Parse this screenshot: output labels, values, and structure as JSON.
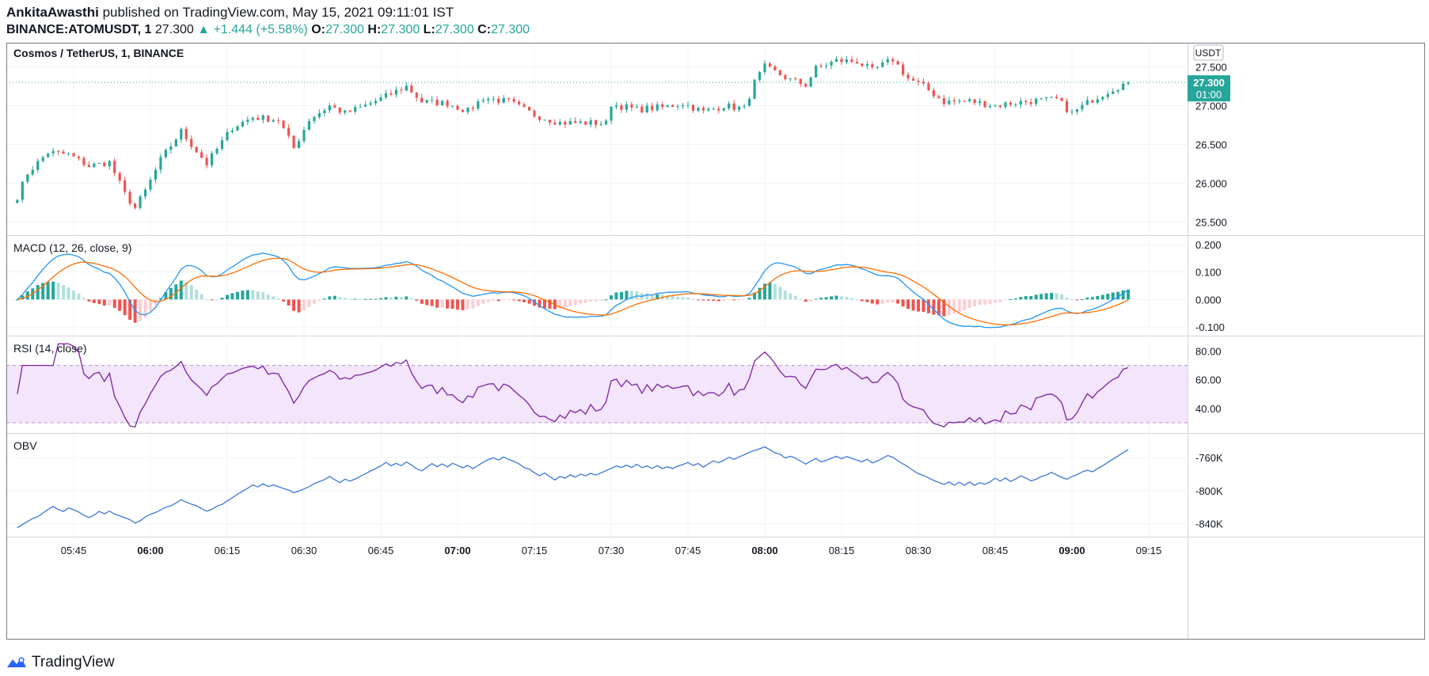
{
  "header": {
    "author": "AnkitaAwasthi",
    "published": "published on TradingView.com, May 15, 2021 09:11:01 IST",
    "symbol": "BINANCE:ATOMUSDT, 1",
    "last": "27.300",
    "change": "+1.444 (+5.58%)",
    "o_label": "O:",
    "o": "27.300",
    "h_label": "H:",
    "h": "27.300",
    "l_label": "L:",
    "l": "27.300",
    "c_label": "C:",
    "c": "27.300"
  },
  "footer": {
    "brand": "TradingView"
  },
  "colors": {
    "up": "#26a69a",
    "down": "#ef5350",
    "macd": "#2196f3",
    "signal": "#ff6d00",
    "rsi": "#7b1fa2",
    "obv": "#3c78d8",
    "grid": "#f0f3fa"
  },
  "chart_data": [
    {
      "type": "candlestick",
      "title": "Cosmos / TetherUS, 1, BINANCE",
      "currency": "USDT",
      "last_price_label": "27.300",
      "countdown_label": "01:00",
      "yticks": [
        "27.500",
        "27.000",
        "26.500",
        "26.000",
        "25.500"
      ],
      "ylim": [
        25.33,
        27.73
      ],
      "xticks": [
        "05:45",
        "06:00",
        "06:15",
        "06:30",
        "06:45",
        "07:00",
        "07:15",
        "07:30",
        "07:45",
        "08:00",
        "08:15",
        "08:30",
        "08:45",
        "09:00",
        "09:15"
      ],
      "x_start": "05:34",
      "x_end": "09:16",
      "bar_interval_minutes": 1,
      "close_anchor_points": [
        [
          "05:34",
          25.83
        ],
        [
          "05:36",
          26.13
        ],
        [
          "05:40",
          26.4
        ],
        [
          "05:44",
          26.37
        ],
        [
          "05:48",
          26.22
        ],
        [
          "05:52",
          26.27
        ],
        [
          "05:55",
          25.86
        ],
        [
          "05:57",
          25.68
        ],
        [
          "05:59",
          25.9
        ],
        [
          "06:02",
          26.3
        ],
        [
          "06:06",
          26.67
        ],
        [
          "06:08",
          26.5
        ],
        [
          "06:11",
          26.25
        ],
        [
          "06:16",
          26.72
        ],
        [
          "06:20",
          26.85
        ],
        [
          "06:25",
          26.82
        ],
        [
          "06:28",
          26.45
        ],
        [
          "06:31",
          26.82
        ],
        [
          "06:35",
          27.0
        ],
        [
          "06:38",
          26.9
        ],
        [
          "06:42",
          27.0
        ],
        [
          "06:46",
          27.12
        ],
        [
          "06:50",
          27.25
        ],
        [
          "06:53",
          27.05
        ],
        [
          "06:58",
          27.03
        ],
        [
          "07:02",
          26.93
        ],
        [
          "07:05",
          27.1
        ],
        [
          "07:10",
          27.05
        ],
        [
          "07:15",
          26.88
        ],
        [
          "07:20",
          26.78
        ],
        [
          "07:24",
          26.78
        ],
        [
          "07:29",
          26.77
        ],
        [
          "07:30",
          27.02
        ],
        [
          "07:35",
          26.95
        ],
        [
          "07:40",
          26.98
        ],
        [
          "07:44",
          27.03
        ],
        [
          "07:48",
          26.92
        ],
        [
          "07:52",
          27.0
        ],
        [
          "07:56",
          26.96
        ],
        [
          "07:58",
          27.3
        ],
        [
          "08:00",
          27.5
        ],
        [
          "08:05",
          27.33
        ],
        [
          "08:08",
          27.27
        ],
        [
          "08:10",
          27.48
        ],
        [
          "08:14",
          27.58
        ],
        [
          "08:18",
          27.57
        ],
        [
          "08:21",
          27.45
        ],
        [
          "08:25",
          27.6
        ],
        [
          "08:28",
          27.35
        ],
        [
          "08:31",
          27.25
        ],
        [
          "08:35",
          27.05
        ],
        [
          "08:40",
          27.06
        ],
        [
          "08:45",
          27.0
        ],
        [
          "08:48",
          27.03
        ],
        [
          "08:52",
          27.06
        ],
        [
          "08:57",
          27.08
        ],
        [
          "09:00",
          26.9
        ],
        [
          "09:04",
          27.08
        ],
        [
          "09:08",
          27.22
        ],
        [
          "09:11",
          27.3
        ]
      ]
    },
    {
      "type": "line",
      "title": "MACD (12, 26, close, 9)",
      "series": [
        {
          "name": "MACD"
        },
        {
          "name": "Signal"
        },
        {
          "name": "Histogram"
        }
      ],
      "yticks": [
        "0.200",
        "0.100",
        "0.000",
        "-0.100"
      ],
      "ylim": [
        -0.12,
        0.22
      ]
    },
    {
      "type": "line",
      "title": "RSI (14, close)",
      "yticks": [
        "80.00",
        "60.00",
        "40.00"
      ],
      "ylim": [
        25,
        88
      ],
      "band": [
        30,
        70
      ]
    },
    {
      "type": "line",
      "title": "OBV",
      "yticks": [
        "-760K",
        "-800K",
        "-840K"
      ],
      "ylim": [
        -852000,
        -735000
      ]
    }
  ]
}
